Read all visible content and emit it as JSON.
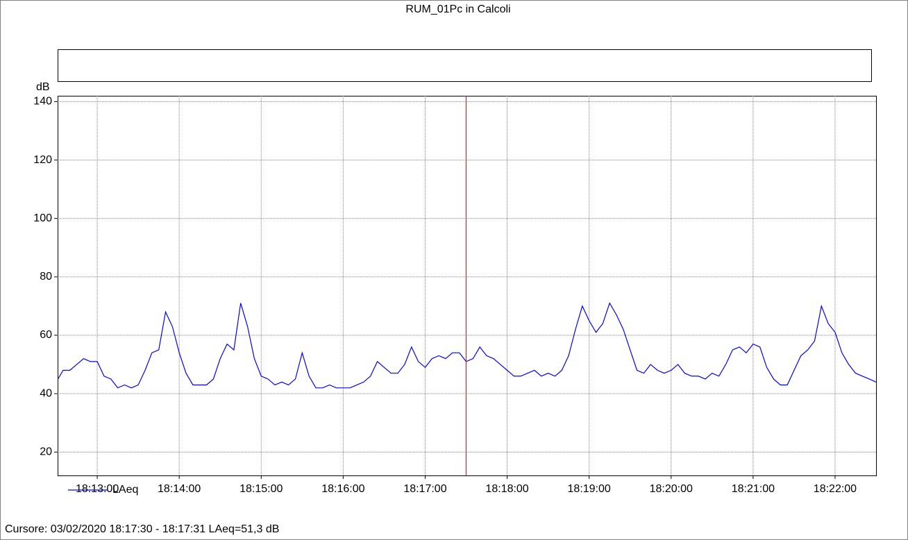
{
  "chart_data": {
    "type": "line",
    "title": "RUM_01Pc in Calcoli",
    "ylabel": "dB",
    "footer": "Cursore: 03/02/2020 18:17:30 - 18:17:31  LAeq=51,3 dB",
    "cursor_x": "18:17:30",
    "cursor_color": "#ff0000",
    "grid": true,
    "xlim": [
      "18:12:31",
      "18:22:30"
    ],
    "xticks": [
      "18:13:00",
      "18:14:00",
      "18:15:00",
      "18:16:00",
      "18:17:00",
      "18:18:00",
      "18:19:00",
      "18:20:00",
      "18:21:00",
      "18:22:00"
    ],
    "ylim": [
      12,
      142
    ],
    "yticks": [
      20,
      40,
      60,
      80,
      100,
      120,
      140
    ],
    "x": [
      "18:12:30",
      "18:12:35",
      "18:12:40",
      "18:12:45",
      "18:12:50",
      "18:12:55",
      "18:13:00",
      "18:13:05",
      "18:13:10",
      "18:13:15",
      "18:13:20",
      "18:13:25",
      "18:13:30",
      "18:13:35",
      "18:13:40",
      "18:13:45",
      "18:13:50",
      "18:13:55",
      "18:14:00",
      "18:14:05",
      "18:14:10",
      "18:14:15",
      "18:14:20",
      "18:14:25",
      "18:14:30",
      "18:14:35",
      "18:14:40",
      "18:14:45",
      "18:14:50",
      "18:14:55",
      "18:15:00",
      "18:15:05",
      "18:15:10",
      "18:15:15",
      "18:15:20",
      "18:15:25",
      "18:15:30",
      "18:15:35",
      "18:15:40",
      "18:15:45",
      "18:15:50",
      "18:15:55",
      "18:16:00",
      "18:16:05",
      "18:16:10",
      "18:16:15",
      "18:16:20",
      "18:16:25",
      "18:16:30",
      "18:16:35",
      "18:16:40",
      "18:16:45",
      "18:16:50",
      "18:16:55",
      "18:17:00",
      "18:17:05",
      "18:17:10",
      "18:17:15",
      "18:17:20",
      "18:17:25",
      "18:17:30",
      "18:17:35",
      "18:17:40",
      "18:17:45",
      "18:17:50",
      "18:17:55",
      "18:18:00",
      "18:18:05",
      "18:18:10",
      "18:18:15",
      "18:18:20",
      "18:18:25",
      "18:18:30",
      "18:18:35",
      "18:18:40",
      "18:18:45",
      "18:18:50",
      "18:18:55",
      "18:19:00",
      "18:19:05",
      "18:19:10",
      "18:19:15",
      "18:19:20",
      "18:19:25",
      "18:19:30",
      "18:19:35",
      "18:19:40",
      "18:19:45",
      "18:19:50",
      "18:19:55",
      "18:20:00",
      "18:20:05",
      "18:20:10",
      "18:20:15",
      "18:20:20",
      "18:20:25",
      "18:20:30",
      "18:20:35",
      "18:20:40",
      "18:20:45",
      "18:20:50",
      "18:20:55",
      "18:21:00",
      "18:21:05",
      "18:21:10",
      "18:21:15",
      "18:21:20",
      "18:21:25",
      "18:21:30",
      "18:21:35",
      "18:21:40",
      "18:21:45",
      "18:21:50",
      "18:21:55",
      "18:22:00",
      "18:22:05",
      "18:22:10",
      "18:22:15",
      "18:22:20",
      "18:22:25",
      "18:22:30"
    ],
    "series": [
      {
        "name": "LAeq",
        "color": "#0000ff",
        "values": [
          44,
          48,
          48,
          50,
          52,
          51,
          51,
          46,
          45,
          42,
          43,
          42,
          43,
          48,
          54,
          55,
          68,
          63,
          54,
          47,
          43,
          43,
          43,
          45,
          52,
          57,
          55,
          71,
          63,
          52,
          46,
          45,
          43,
          44,
          43,
          45,
          54,
          46,
          42,
          42,
          43,
          42,
          42,
          42,
          43,
          44,
          46,
          51,
          49,
          47,
          47,
          50,
          56,
          51,
          49,
          52,
          53,
          52,
          54,
          54,
          51,
          52,
          56,
          53,
          52,
          50,
          48,
          46,
          46,
          47,
          48,
          46,
          47,
          46,
          48,
          53,
          62,
          70,
          65,
          61,
          64,
          71,
          67,
          62,
          55,
          48,
          47,
          50,
          48,
          47,
          48,
          50,
          47,
          46,
          46,
          45,
          47,
          46,
          50,
          55,
          56,
          54,
          57,
          56,
          49,
          45,
          43,
          43,
          48,
          53,
          55,
          58,
          70,
          64,
          61,
          54,
          50,
          47,
          46,
          45,
          44
        ]
      }
    ]
  }
}
